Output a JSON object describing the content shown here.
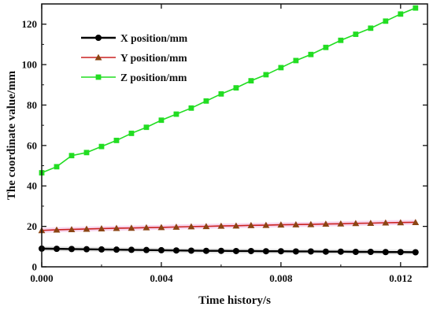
{
  "chart_data": {
    "type": "line",
    "xlabel": "Time history/s",
    "ylabel": "The coordinate value/mm",
    "xlim": [
      0,
      0.0129
    ],
    "ylim": [
      0,
      130
    ],
    "x_ticks": [
      0,
      0.004,
      0.008,
      0.012
    ],
    "x_tick_labels": [
      "0.000",
      "0.004",
      "0.008",
      "0.012"
    ],
    "y_ticks": [
      0,
      20,
      40,
      60,
      80,
      100,
      120
    ],
    "y_tick_labels": [
      "0",
      "20",
      "40",
      "60",
      "80",
      "100",
      "120"
    ],
    "grid": false,
    "legend_position": "top-left",
    "x": [
      0,
      0.0005,
      0.001,
      0.0015,
      0.002,
      0.0025,
      0.003,
      0.0035,
      0.004,
      0.0045,
      0.005,
      0.0055,
      0.006,
      0.0065,
      0.007,
      0.0075,
      0.008,
      0.0085,
      0.009,
      0.0095,
      0.01,
      0.0105,
      0.011,
      0.0115,
      0.012,
      0.0125
    ],
    "series": [
      {
        "name": "X position/mm",
        "marker": "circle",
        "color": "#000000",
        "values": [
          9.0,
          8.9,
          8.8,
          8.7,
          8.6,
          8.5,
          8.4,
          8.3,
          8.2,
          8.1,
          8.0,
          7.9,
          7.9,
          7.8,
          7.8,
          7.7,
          7.7,
          7.6,
          7.6,
          7.5,
          7.5,
          7.4,
          7.4,
          7.3,
          7.3,
          7.2
        ]
      },
      {
        "name": "Y position/mm",
        "marker": "triangle",
        "color": "#cc2222",
        "marker_color": "#8b4513",
        "values": [
          18.0,
          18.3,
          18.5,
          18.7,
          18.9,
          19.1,
          19.2,
          19.4,
          19.5,
          19.7,
          19.9,
          20.0,
          20.2,
          20.3,
          20.5,
          20.6,
          20.8,
          20.9,
          21.0,
          21.2,
          21.3,
          21.5,
          21.6,
          21.8,
          21.9,
          22.0
        ]
      },
      {
        "name": "Z position/mm",
        "marker": "square",
        "color": "#22dd22",
        "values": [
          46.5,
          49.5,
          55,
          56.5,
          59.5,
          62.5,
          66,
          69,
          72.5,
          75.5,
          78.5,
          82,
          85.5,
          88.5,
          92,
          95,
          98.5,
          102,
          105,
          108.5,
          112,
          115,
          118,
          121.5,
          125,
          128
        ]
      }
    ]
  }
}
